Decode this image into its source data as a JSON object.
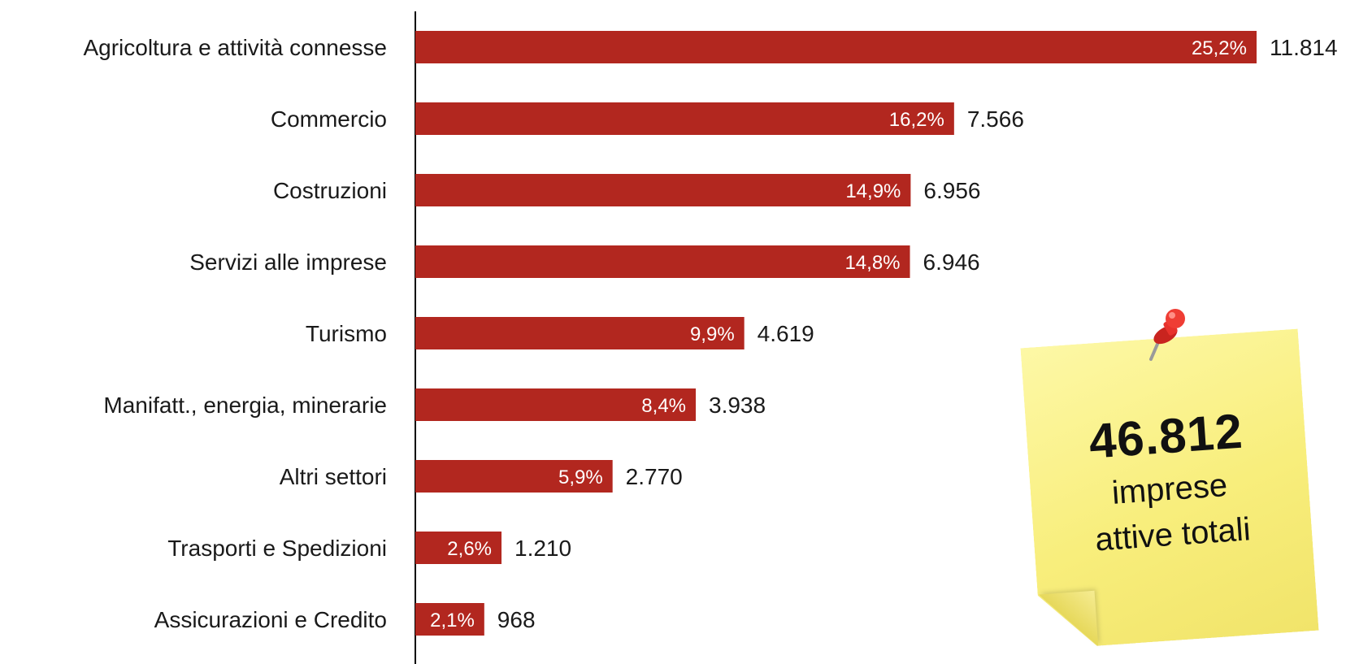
{
  "chart_data": {
    "type": "bar",
    "orientation": "horizontal",
    "categories": [
      "Agricoltura e attività connesse",
      "Commercio",
      "Costruzioni",
      "Servizi alle imprese",
      "Turismo",
      "Manifatt., energia, minerarie",
      "Altri settori",
      "Trasporti e Spedizioni",
      "Assicurazioni e Credito"
    ],
    "values": [
      11814,
      7566,
      6956,
      6946,
      4619,
      3938,
      2770,
      1210,
      968
    ],
    "value_labels": [
      "11.814",
      "7.566",
      "6.956",
      "6.946",
      "4.619",
      "3.938",
      "2.770",
      "1.210",
      "968"
    ],
    "percent_labels": [
      "25,2%",
      "16,2%",
      "14,9%",
      "14,8%",
      "9,9%",
      "8,4%",
      "5,9%",
      "2,6%",
      "2,1%"
    ],
    "xlim": [
      0,
      11814
    ],
    "grid": false,
    "bar_color": "#b2271f"
  },
  "note": {
    "total": "46.812",
    "caption_line1": "imprese",
    "caption_line2": "attive totali"
  },
  "icons": {
    "pin": "pushpin-icon"
  },
  "colors": {
    "bar": "#b2271f",
    "note": "#f8ee7c",
    "pin": "#e8322c"
  }
}
